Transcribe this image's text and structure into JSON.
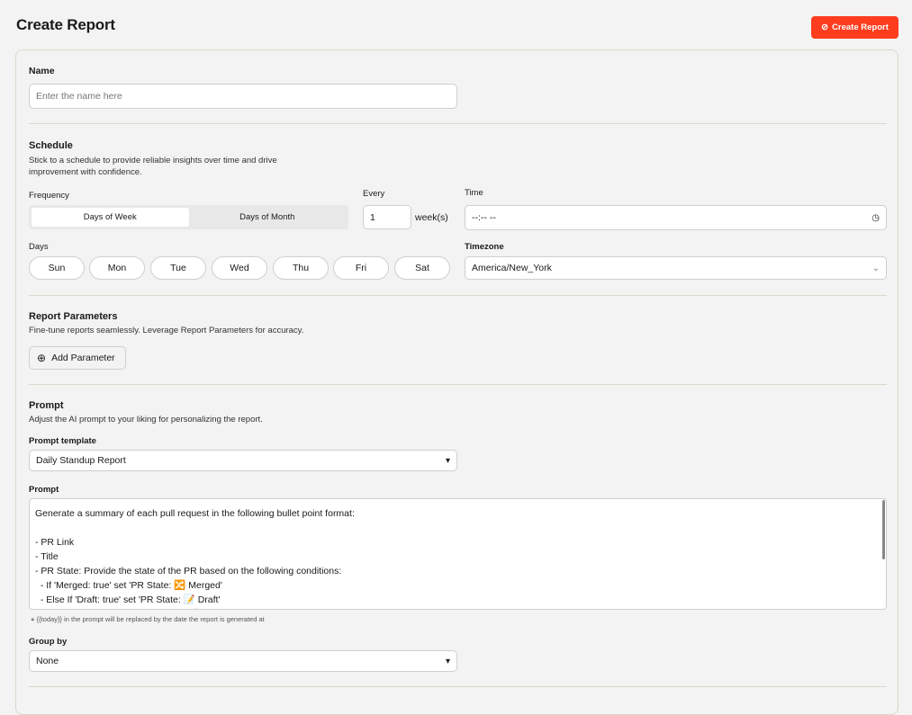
{
  "header": {
    "title": "Create Report",
    "create_button": "Create Report"
  },
  "name": {
    "label": "Name",
    "placeholder": "Enter the name here"
  },
  "schedule": {
    "title": "Schedule",
    "description_line1": "Stick to a schedule to provide reliable insights over time and drive",
    "description_line2": "improvement with confidence.",
    "frequency_label": "Frequency",
    "frequency_options": [
      "Days of Week",
      "Days of Month"
    ],
    "frequency_selected": "Days of Week",
    "every_label": "Every",
    "every_value": "1",
    "every_unit": "week(s)",
    "time_label": "Time",
    "time_value": "--:-- --",
    "days_label": "Days",
    "days": [
      "Sun",
      "Mon",
      "Tue",
      "Wed",
      "Thu",
      "Fri",
      "Sat"
    ],
    "timezone_label": "Timezone",
    "timezone_value": "America/New_York"
  },
  "parameters": {
    "title": "Report Parameters",
    "description": "Fine-tune reports seamlessly. Leverage Report Parameters for accuracy.",
    "add_button": "Add Parameter"
  },
  "prompt": {
    "title": "Prompt",
    "description": "Adjust the AI prompt to your liking for personalizing the report.",
    "template_label": "Prompt template",
    "template_value": "Daily Standup Report",
    "prompt_label": "Prompt",
    "prompt_text": "Generate a summary of each pull request in the following bullet point format:\n\n- PR Link\n- Title\n- PR State: Provide the state of the PR based on the following conditions:\n  - If 'Merged: true' set 'PR State: 🔀 Merged'\n  - Else If 'Draft: true' set 'PR State: 📝 Draft'\n  - Else If 'State: open' set 'PR State: ⚪ Open'",
    "hint": "{{today}} in the prompt will be replaced by the date the report is generated at",
    "group_by_label": "Group by",
    "group_by_value": "None"
  },
  "colors": {
    "accent": "#fe3d1f",
    "background": "#f3f3f3"
  }
}
